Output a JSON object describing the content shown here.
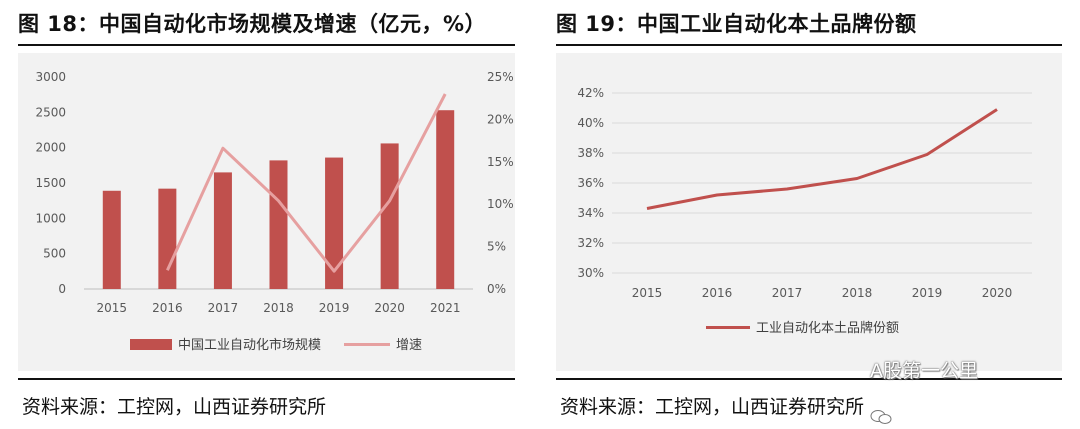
{
  "left": {
    "title": "图 18：中国自动化市场规模及增速（亿元，%）",
    "source": "资料来源：工控网，山西证券研究所"
  },
  "right": {
    "title": "图 19：中国工业自动化本土品牌份额",
    "source": "资料来源：工控网，山西证券研究所"
  },
  "watermark": "A股第一公里",
  "colors": {
    "bar": "#c0504d",
    "growth_line": "#e6a0a0",
    "share_line": "#c0504d"
  },
  "chart_data": [
    {
      "type": "bar",
      "categories": [
        "2015",
        "2016",
        "2017",
        "2018",
        "2019",
        "2020",
        "2021"
      ],
      "series": [
        {
          "name": "中国工业自动化市场规模",
          "type": "bar",
          "axis": "left",
          "values": [
            1390,
            1420,
            1650,
            1820,
            1860,
            2060,
            2530
          ]
        },
        {
          "name": "增速",
          "type": "line",
          "axis": "right",
          "values": [
            null,
            2.2,
            16.6,
            10.4,
            2.1,
            10.4,
            23.0
          ]
        }
      ],
      "y_left": {
        "min": 0,
        "max": 3000,
        "ticks": [
          "0",
          "500",
          "1000",
          "1500",
          "2000",
          "2500",
          "3000"
        ]
      },
      "y_right": {
        "min": 0,
        "max": 25,
        "ticks": [
          "0%",
          "5%",
          "10%",
          "15%",
          "20%",
          "25%"
        ]
      },
      "legend": [
        "中国工业自动化市场规模",
        "增速"
      ],
      "legend_position": "bottom"
    },
    {
      "type": "line",
      "categories": [
        "2015",
        "2016",
        "2017",
        "2018",
        "2019",
        "2020"
      ],
      "series": [
        {
          "name": "工业自动化本土品牌份额",
          "values": [
            34.3,
            35.2,
            35.6,
            36.3,
            37.9,
            40.9
          ]
        }
      ],
      "y": {
        "min": 30,
        "max": 42,
        "ticks": [
          "30%",
          "32%",
          "34%",
          "36%",
          "38%",
          "40%",
          "42%"
        ]
      },
      "legend": [
        "工业自动化本土品牌份额"
      ],
      "legend_position": "bottom"
    }
  ]
}
